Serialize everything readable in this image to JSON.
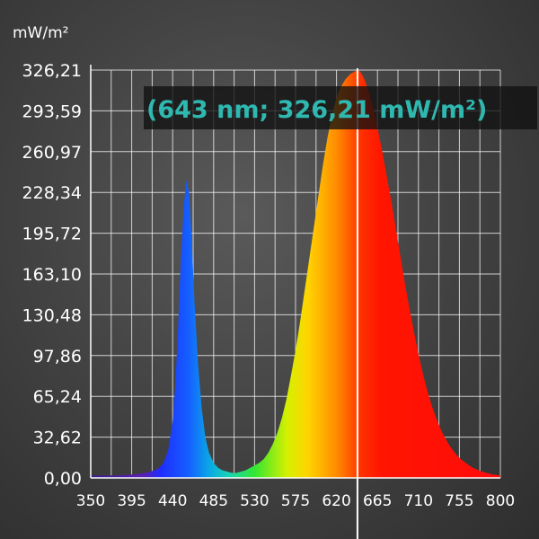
{
  "chart_data": {
    "type": "area",
    "ylabel": "mW/m²",
    "xlim": [
      350,
      800
    ],
    "ylim": [
      0,
      326.21
    ],
    "x_ticks": [
      "350",
      "395",
      "440",
      "485",
      "530",
      "575",
      "620",
      "665",
      "710",
      "755",
      "800"
    ],
    "y_ticks": [
      "0,00",
      "32,62",
      "65,24",
      "97,86",
      "130,48",
      "163,10",
      "195,72",
      "228,34",
      "260,97",
      "293,59",
      "326,21"
    ],
    "grid": true,
    "series": [
      {
        "x": [
          350,
          380,
          400,
          410,
          420,
          425,
          430,
          435,
          440,
          443,
          446,
          449,
          452,
          455,
          458,
          461,
          464,
          468,
          472,
          476,
          480,
          485,
          490,
          495,
          500,
          505,
          510,
          515,
          520,
          525,
          530,
          535,
          540,
          545,
          550,
          555,
          560,
          565,
          570,
          575,
          580,
          585,
          590,
          595,
          600,
          605,
          610,
          615,
          620,
          625,
          630,
          635,
          640,
          643,
          646,
          650,
          655,
          660,
          665,
          670,
          675,
          680,
          685,
          690,
          695,
          700,
          705,
          710,
          715,
          720,
          725,
          730,
          735,
          740,
          745,
          750,
          755,
          760,
          770,
          780,
          790,
          800
        ],
        "values": [
          2,
          2,
          3,
          4,
          6,
          8,
          12,
          22,
          45,
          75,
          120,
          175,
          215,
          238,
          228,
          190,
          140,
          90,
          55,
          32,
          20,
          12,
          8,
          6,
          5,
          4,
          4,
          5,
          6,
          8,
          10,
          12,
          15,
          20,
          27,
          36,
          48,
          63,
          82,
          102,
          125,
          150,
          175,
          200,
          225,
          250,
          272,
          290,
          304,
          313,
          319,
          323,
          325,
          326.21,
          325,
          320,
          310,
          296,
          280,
          262,
          242,
          222,
          200,
          178,
          156,
          136,
          117,
          99,
          83,
          69,
          57,
          47,
          38,
          31,
          25,
          20,
          16,
          13,
          8,
          5,
          3,
          2
        ]
      }
    ],
    "cursor": {
      "x": 643,
      "y": 326.21
    },
    "readout": "(643 nm; 326,21 mW/m²)"
  }
}
